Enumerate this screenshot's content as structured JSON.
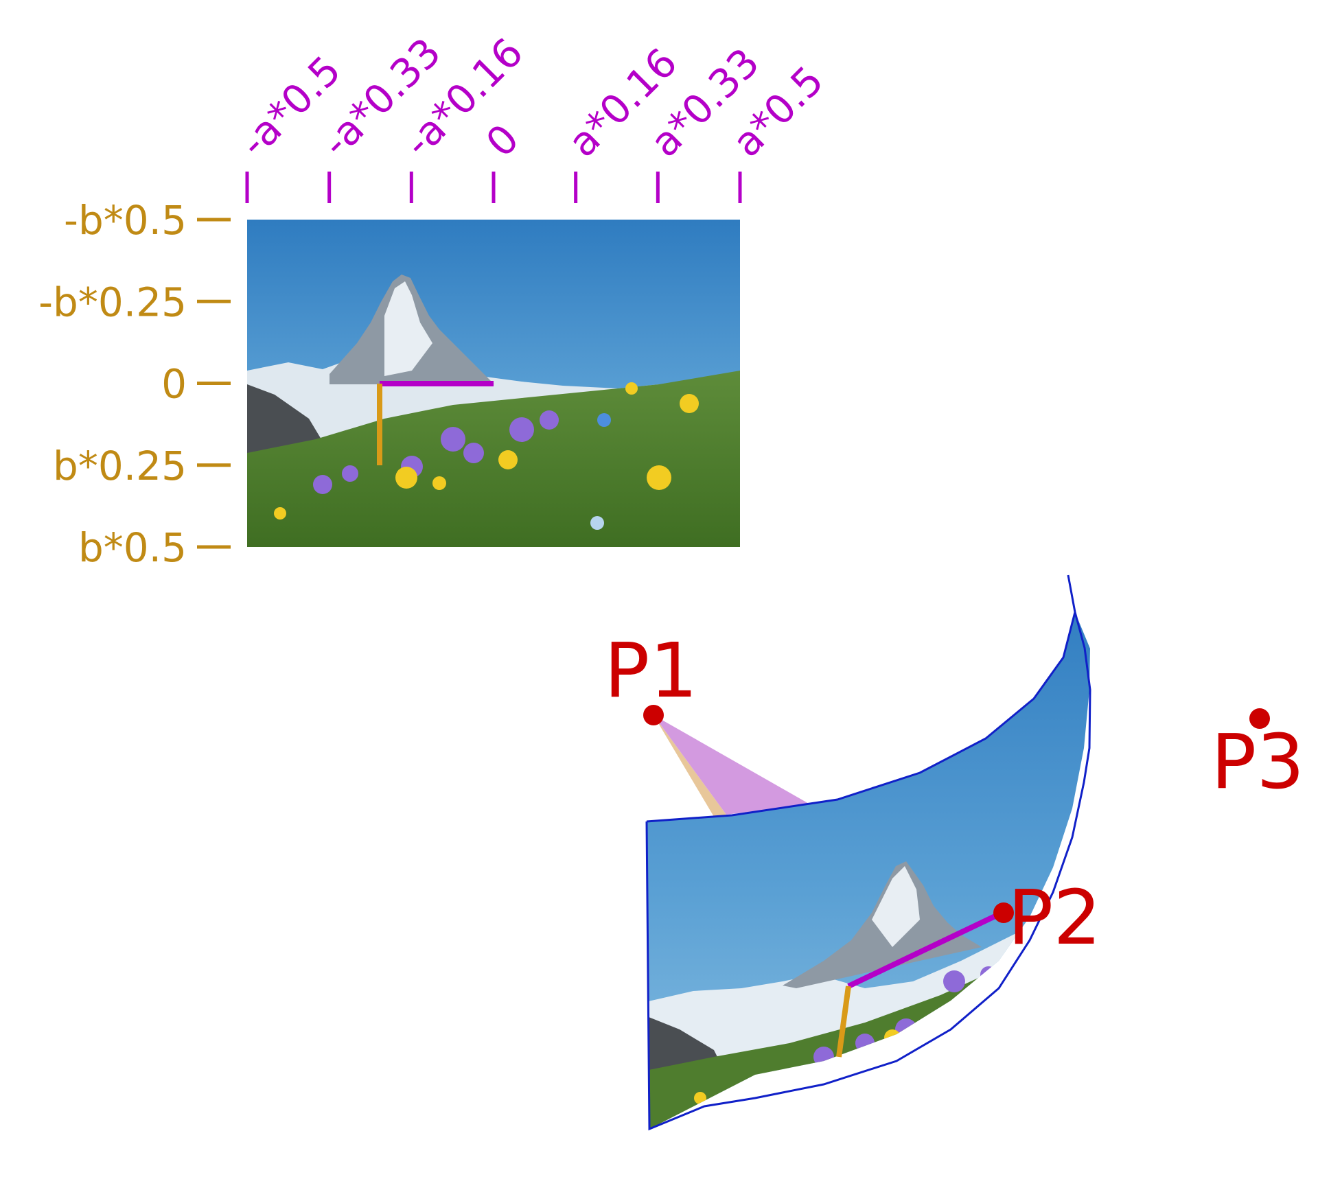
{
  "colors": {
    "x_axis": "#b400c8",
    "y_axis": "#c08a14",
    "points": "#cc0000",
    "surface_edge": "#1020c8",
    "ray_a": "#d39ae0",
    "ray_b": "#e8c79a",
    "sky_top": "#2f7dc0",
    "sky_bottom": "#6fb0dc"
  },
  "x_axis": {
    "ticks": [
      "-a*0.5",
      "-a*0.33",
      "-a*0.16",
      "0",
      "a*0.16",
      "a*0.33",
      "a*0.5"
    ]
  },
  "y_axis": {
    "ticks": [
      "-b*0.5",
      "-b*0.25",
      "0",
      "b*0.25",
      "b*0.5"
    ]
  },
  "points": [
    {
      "label": "P1"
    },
    {
      "label": "P2"
    },
    {
      "label": "P3"
    }
  ],
  "icons": {
    "image": "mountain-meadow-photo",
    "projected_image": "curved-projected-photo"
  }
}
